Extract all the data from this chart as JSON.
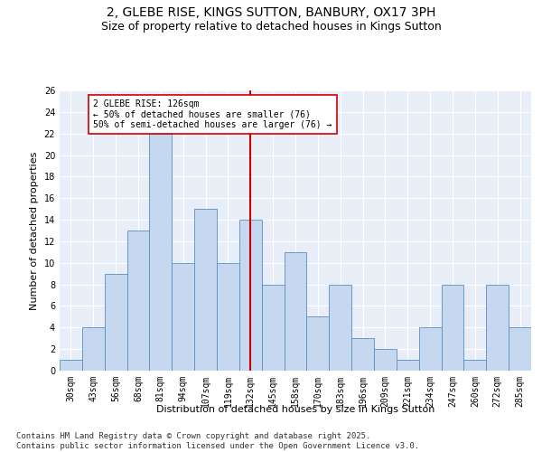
{
  "title1": "2, GLEBE RISE, KINGS SUTTON, BANBURY, OX17 3PH",
  "title2": "Size of property relative to detached houses in Kings Sutton",
  "xlabel": "Distribution of detached houses by size in Kings Sutton",
  "ylabel": "Number of detached properties",
  "categories": [
    "30sqm",
    "43sqm",
    "56sqm",
    "68sqm",
    "81sqm",
    "94sqm",
    "107sqm",
    "119sqm",
    "132sqm",
    "145sqm",
    "158sqm",
    "170sqm",
    "183sqm",
    "196sqm",
    "209sqm",
    "221sqm",
    "234sqm",
    "247sqm",
    "260sqm",
    "272sqm",
    "285sqm"
  ],
  "values": [
    1,
    4,
    9,
    13,
    22,
    10,
    15,
    10,
    14,
    8,
    11,
    5,
    8,
    3,
    2,
    1,
    4,
    8,
    1,
    8,
    4
  ],
  "bar_color": "#c5d8f0",
  "bar_edge_color": "#5a8fc0",
  "annotation_title": "2 GLEBE RISE: 126sqm",
  "annotation_line1": "← 50% of detached houses are smaller (76)",
  "annotation_line2": "50% of semi-detached houses are larger (76) →",
  "annotation_box_color": "#ffffff",
  "annotation_box_edge_color": "#cc0000",
  "vline_color": "#cc0000",
  "vline_x_index": 8.0,
  "ylim": [
    0,
    26
  ],
  "yticks": [
    0,
    2,
    4,
    6,
    8,
    10,
    12,
    14,
    16,
    18,
    20,
    22,
    24,
    26
  ],
  "background_color": "#e8eef8",
  "footer": "Contains HM Land Registry data © Crown copyright and database right 2025.\nContains public sector information licensed under the Open Government Licence v3.0.",
  "title_fontsize": 10,
  "subtitle_fontsize": 9,
  "axis_label_fontsize": 8,
  "tick_fontsize": 7,
  "footer_fontsize": 6.5
}
